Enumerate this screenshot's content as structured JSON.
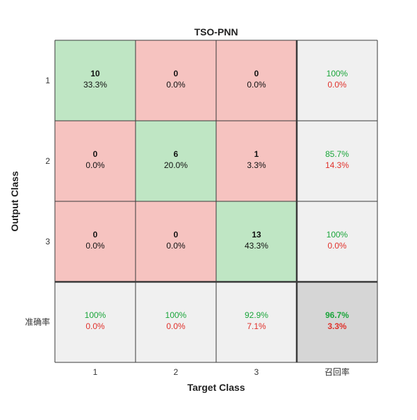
{
  "chart_data": {
    "type": "heatmap",
    "title": "TSO-PNN",
    "xlabel": "Target Class",
    "ylabel": "Output Class",
    "x_tick_labels": [
      "1",
      "2",
      "3",
      "召回率"
    ],
    "y_tick_labels": [
      "1",
      "2",
      "3",
      "准确率"
    ],
    "matrix": [
      [
        10,
        0,
        0
      ],
      [
        0,
        6,
        1
      ],
      [
        0,
        0,
        13
      ]
    ],
    "matrix_percent": [
      [
        "33.3%",
        "0.0%",
        "0.0%"
      ],
      [
        "0.0%",
        "20.0%",
        "3.3%"
      ],
      [
        "0.0%",
        "0.0%",
        "43.3%"
      ]
    ],
    "row_summary": [
      {
        "correct": "100%",
        "wrong": "0.0%"
      },
      {
        "correct": "85.7%",
        "wrong": "14.3%"
      },
      {
        "correct": "100%",
        "wrong": "0.0%"
      }
    ],
    "column_summary": [
      {
        "correct": "100%",
        "wrong": "0.0%"
      },
      {
        "correct": "100%",
        "wrong": "0.0%"
      },
      {
        "correct": "92.9%",
        "wrong": "7.1%"
      }
    ],
    "overall": {
      "correct": "96.7%",
      "wrong": "3.3%"
    },
    "colors": {
      "correct_fill": "#bfe6c4",
      "wrong_fill": "#f6c3c0",
      "summary_fill": "#f0f0f0",
      "overall_fill": "#d6d6d6",
      "correct_text": "#1aa53a",
      "wrong_text": "#e0302a",
      "grid_line": "#3a3a3a"
    }
  }
}
